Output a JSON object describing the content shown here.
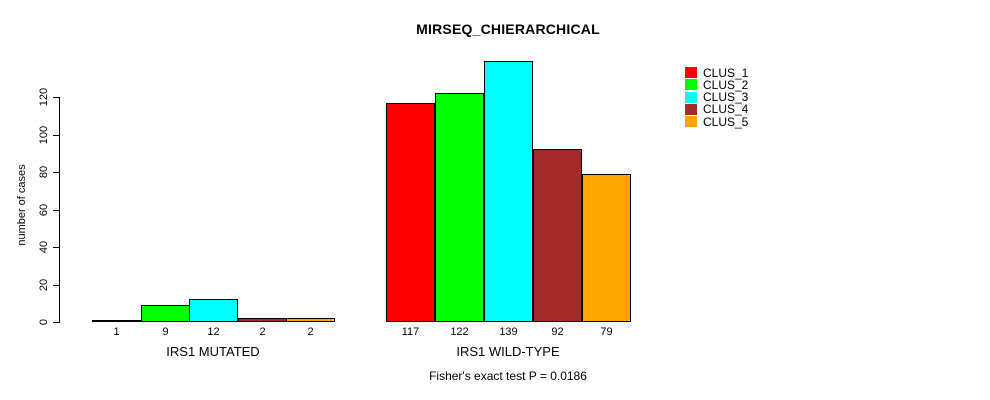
{
  "title": "MIRSEQ_CHIERARCHICAL",
  "footer": "Fisher's exact test P = 0.0186",
  "chart_data": {
    "type": "bar",
    "title": "MIRSEQ_CHIERARCHICAL",
    "xlabel": "",
    "ylabel": "number of cases",
    "ylim": [
      0,
      139
    ],
    "yticks": [
      0,
      20,
      40,
      60,
      80,
      100,
      120
    ],
    "grid": false,
    "legend_position": "top-right",
    "annotation": "Fisher's exact test P = 0.0186",
    "series": [
      {
        "name": "CLUS_1",
        "color": "#ff0000"
      },
      {
        "name": "CLUS_2",
        "color": "#00ff00"
      },
      {
        "name": "CLUS_3",
        "color": "#00ffff"
      },
      {
        "name": "CLUS_4",
        "color": "#a52a2a"
      },
      {
        "name": "CLUS_5",
        "color": "#ffa500"
      }
    ],
    "groups": [
      {
        "label": "IRS1 MUTATED",
        "values": [
          1,
          9,
          12,
          2,
          2
        ]
      },
      {
        "label": "IRS1 WILD-TYPE",
        "values": [
          117,
          122,
          139,
          92,
          79
        ]
      }
    ]
  }
}
